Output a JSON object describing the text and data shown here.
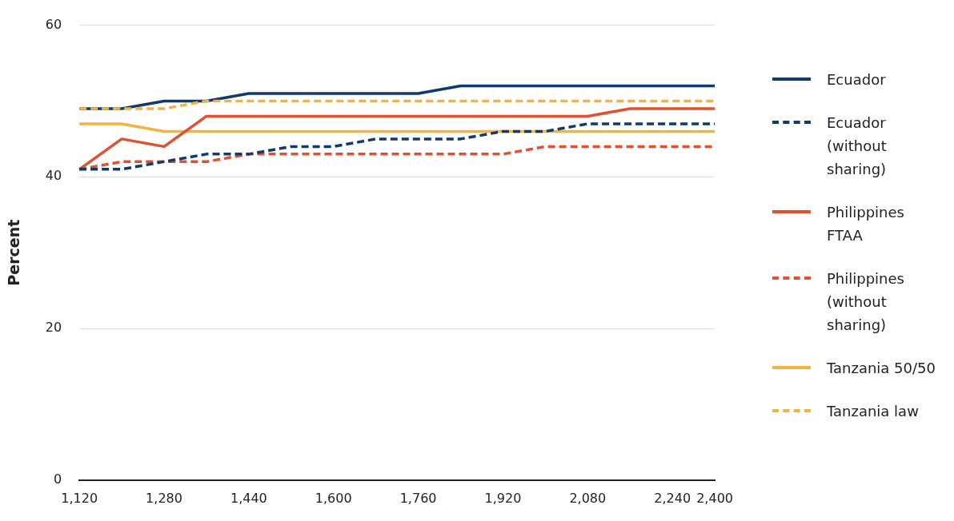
{
  "chart_data": {
    "type": "line",
    "ylabel": "Percent",
    "categories": [
      "1,120",
      null,
      "1,280",
      null,
      "1,440",
      null,
      "1,600",
      null,
      "1,760",
      null,
      "1,920",
      null,
      "2,080",
      null,
      "2,240",
      "2,400"
    ],
    "ylim": [
      0,
      60
    ],
    "yticks": [
      0,
      20,
      40,
      60
    ],
    "grid": "y",
    "legend": "right",
    "marker": "none",
    "series": [
      {
        "name": "Ecuador",
        "color": "#0e3a6c",
        "line_style": "solid",
        "values": [
          49,
          49,
          50,
          50,
          51,
          51,
          51,
          51,
          51,
          52,
          52,
          52,
          52,
          52,
          52,
          52
        ]
      },
      {
        "name": "Ecuador (without sharing)",
        "color": "#0e3a6c",
        "line_style": "dashed",
        "values": [
          41,
          41,
          42,
          43,
          43,
          44,
          44,
          45,
          45,
          45,
          46,
          46,
          47,
          47,
          47,
          47
        ]
      },
      {
        "name": "Philippines FTAA",
        "color": "#e1502f",
        "line_style": "solid",
        "values": [
          41,
          45,
          44,
          48,
          48,
          48,
          48,
          48,
          48,
          48,
          48,
          48,
          48,
          49,
          49,
          49
        ]
      },
      {
        "name": "Philippines (without sharing)",
        "color": "#e1502f",
        "line_style": "dashed",
        "values": [
          41,
          42,
          42,
          42,
          43,
          43,
          43,
          43,
          43,
          43,
          43,
          44,
          44,
          44,
          44,
          44
        ]
      },
      {
        "name": "Tanzania 50/50",
        "color": "#f3b43f",
        "line_style": "solid",
        "values": [
          47,
          47,
          46,
          46,
          46,
          46,
          46,
          46,
          46,
          46,
          46,
          46,
          46,
          46,
          46,
          46
        ]
      },
      {
        "name": "Tanzania law",
        "color": "#f3b43f",
        "line_style": "dashed",
        "values": [
          49,
          49,
          49,
          50,
          50,
          50,
          50,
          50,
          50,
          50,
          50,
          50,
          50,
          50,
          50,
          50
        ]
      }
    ]
  }
}
